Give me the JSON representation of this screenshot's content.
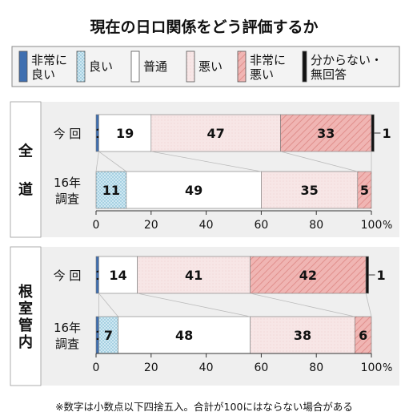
{
  "title": "現在の日ロ関係をどう評価するか",
  "footnote": "※数字は小数点以下四捨五入。合計が100にはならない場合がある",
  "axis_suffix": "%",
  "colors": {
    "very_good": "#3f6fb0",
    "good": "#cfe8f2",
    "normal": "#ffffff",
    "bad": "#f7e6e6",
    "very_bad": "#f0b5b3",
    "unknown": "#111111",
    "panel_bg": "#efefef",
    "group_box": "#ffffff"
  },
  "legend": [
    {
      "key": "very_good",
      "lines": [
        "非常に",
        "良い"
      ]
    },
    {
      "key": "good",
      "lines": [
        "良い"
      ]
    },
    {
      "key": "normal",
      "lines": [
        "普通"
      ]
    },
    {
      "key": "bad",
      "lines": [
        "悪い"
      ]
    },
    {
      "key": "very_bad",
      "lines": [
        "非常に",
        "悪い"
      ]
    },
    {
      "key": "unknown",
      "lines": [
        "分からない・",
        "無回答"
      ]
    }
  ],
  "chart_data": [
    {
      "type": "bar",
      "orientation": "horizontal",
      "stacked": true,
      "group": "全道",
      "xlim": [
        0,
        100
      ],
      "xticks": [
        0,
        20,
        40,
        60,
        80,
        100
      ],
      "rows": [
        {
          "label": [
            "今 回"
          ],
          "values": [
            1,
            0,
            19,
            47,
            33,
            1
          ],
          "shown": [
            "1",
            "",
            "19",
            "47",
            "33",
            "1"
          ]
        },
        {
          "label": [
            "16年",
            "調査"
          ],
          "values": [
            0,
            11,
            49,
            35,
            5,
            0
          ],
          "shown": [
            "",
            "11",
            "49",
            "35",
            "5",
            ""
          ]
        }
      ]
    },
    {
      "type": "bar",
      "orientation": "horizontal",
      "stacked": true,
      "group": "根室管内",
      "xlim": [
        0,
        100
      ],
      "xticks": [
        0,
        20,
        40,
        60,
        80,
        100
      ],
      "rows": [
        {
          "label": [
            "今 回"
          ],
          "values": [
            1,
            0,
            14,
            41,
            42,
            1
          ],
          "shown": [
            "1",
            "",
            "14",
            "41",
            "42",
            "1"
          ]
        },
        {
          "label": [
            "16年",
            "調査"
          ],
          "values": [
            1,
            7,
            48,
            38,
            6,
            0
          ],
          "shown": [
            "1",
            "7",
            "48",
            "38",
            "6",
            ""
          ]
        }
      ]
    }
  ]
}
